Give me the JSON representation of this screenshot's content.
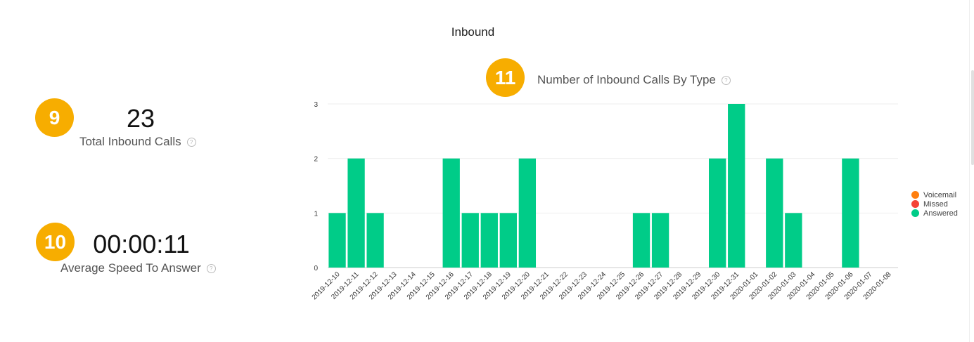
{
  "section": {
    "title": "Inbound"
  },
  "metrics": {
    "total_calls": {
      "badge": "9",
      "value": "23",
      "label": "Total Inbound Calls"
    },
    "avg_speed": {
      "badge": "10",
      "value": "00:00:11",
      "label": "Average Speed To Answer"
    }
  },
  "chart_badge": "11",
  "help_glyph": "?",
  "colors": {
    "badge": "#f7ad00",
    "voicemail": "#ff7f0e",
    "missed": "#f44336",
    "answered": "#00cc88"
  },
  "chart_data": {
    "type": "bar",
    "title": "Number of Inbound Calls By Type",
    "xlabel": "",
    "ylabel": "",
    "ylim": [
      0,
      3
    ],
    "yticks": [
      0,
      1,
      2,
      3
    ],
    "grid": true,
    "legend_position": "right",
    "categories": [
      "2019-12-10",
      "2019-12-11",
      "2019-12-12",
      "2019-12-13",
      "2019-12-14",
      "2019-12-15",
      "2019-12-16",
      "2019-12-17",
      "2019-12-18",
      "2019-12-19",
      "2019-12-20",
      "2019-12-21",
      "2019-12-22",
      "2019-12-23",
      "2019-12-24",
      "2019-12-25",
      "2019-12-26",
      "2019-12-27",
      "2019-12-28",
      "2019-12-29",
      "2019-12-30",
      "2019-12-31",
      "2020-01-01",
      "2020-01-02",
      "2020-01-03",
      "2020-01-04",
      "2020-01-05",
      "2020-01-06",
      "2020-01-07",
      "2020-01-08"
    ],
    "series": [
      {
        "name": "Voicemail",
        "color": "#ff7f0e",
        "values": [
          0,
          0,
          0,
          0,
          0,
          0,
          0,
          0,
          0,
          0,
          0,
          0,
          0,
          0,
          0,
          0,
          0,
          0,
          0,
          0,
          0,
          0,
          0,
          0,
          0,
          0,
          0,
          0,
          0,
          0
        ]
      },
      {
        "name": "Missed",
        "color": "#f44336",
        "values": [
          0,
          0,
          0,
          0,
          0,
          0,
          0,
          0,
          0,
          0,
          0,
          0,
          0,
          0,
          0,
          0,
          0,
          0,
          0,
          0,
          0,
          0,
          0,
          0,
          0,
          0,
          0,
          0,
          0,
          0
        ]
      },
      {
        "name": "Answered",
        "color": "#00cc88",
        "values": [
          1,
          2,
          1,
          0,
          0,
          0,
          2,
          1,
          1,
          1,
          2,
          0,
          0,
          0,
          0,
          0,
          1,
          1,
          0,
          0,
          2,
          3,
          0,
          2,
          1,
          0,
          0,
          2,
          0,
          0
        ]
      }
    ]
  }
}
